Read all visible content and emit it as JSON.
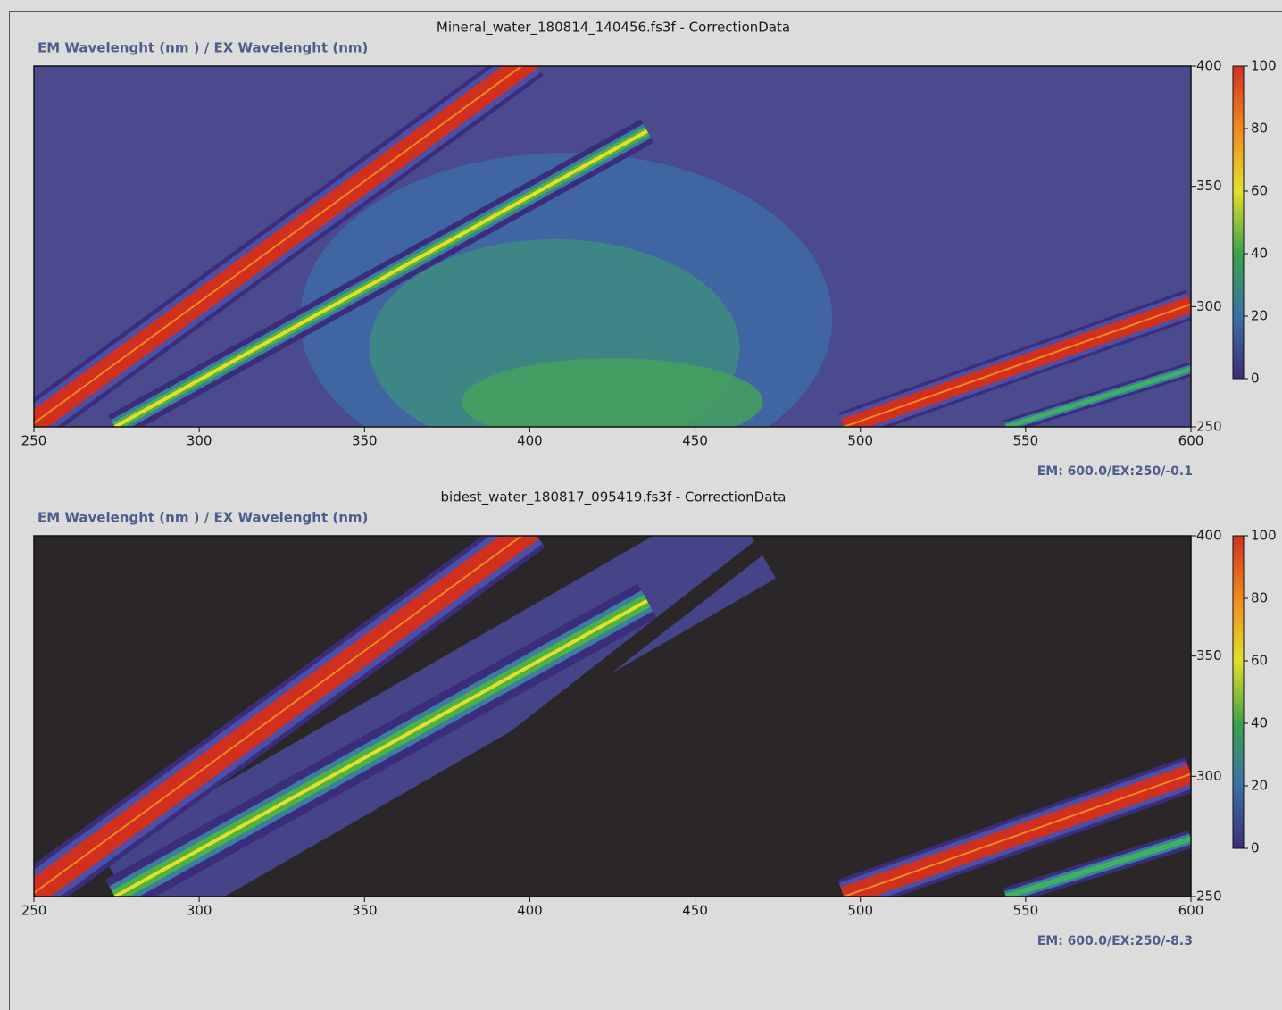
{
  "chart_data": [
    {
      "type": "contour",
      "title": "Mineral_water_180814_140456.fs3f - CorrectionData",
      "axis_label": "EM Wavelenght (nm ) / EX Wavelenght (nm)",
      "xlim": [
        250,
        600
      ],
      "xticks": [
        250,
        300,
        350,
        400,
        450,
        500,
        550,
        600
      ],
      "ylim": [
        250,
        400
      ],
      "yticks": [
        250,
        300,
        350,
        400
      ],
      "colorbar_lim": [
        0,
        100
      ],
      "colorbar_ticks": [
        0,
        20,
        40,
        60,
        80,
        100
      ],
      "colormap": [
        "#3b2d7c",
        "#3b6fa8",
        "#3aa24a",
        "#e4e02a",
        "#f08a1e",
        "#d2301e"
      ],
      "background": "#4b4a8e",
      "status": "EM: 600.0/EX:250/-0.1"
    },
    {
      "type": "contour",
      "title": "bidest_water_180817_095419.fs3f - CorrectionData",
      "axis_label": "EM Wavelenght (nm ) / EX Wavelenght (nm)",
      "xlim": [
        250,
        600
      ],
      "xticks": [
        250,
        300,
        350,
        400,
        450,
        500,
        550,
        600
      ],
      "ylim": [
        250,
        400
      ],
      "yticks": [
        250,
        300,
        350,
        400
      ],
      "colorbar_lim": [
        0,
        100
      ],
      "colorbar_ticks": [
        0,
        20,
        40,
        60,
        80,
        100
      ],
      "colormap": [
        "#3b2d7c",
        "#3b6fa8",
        "#3aa24a",
        "#e4e02a",
        "#f08a1e",
        "#d2301e"
      ],
      "background": "#2b2729",
      "status": "EM: 600.0/EX:250/-8.3"
    }
  ]
}
